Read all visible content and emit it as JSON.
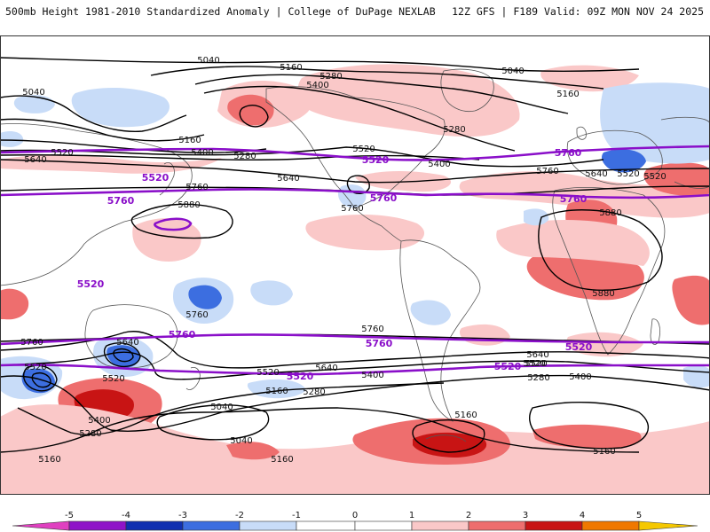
{
  "header": {
    "title": "500mb Height 1981-2010 Standardized Anomaly | College of DuPage NEXLAB",
    "run_info": "12Z GFS | F189 Valid: 09Z MON NOV 24 2025"
  },
  "colors": {
    "contour": "#000000",
    "climatology": "#8a0fc9",
    "coast": "#555555",
    "land": "#ffffff",
    "anom_neg5": "#e040c0",
    "anom_neg4": "#8f14c8",
    "anom_neg3": "#1030b0",
    "anom_neg2": "#3c6ee0",
    "anom_neg1": "#c8dcf8",
    "anom_pos1": "#fac8c8",
    "anom_pos2": "#ee6e6e",
    "anom_pos3": "#c81414",
    "anom_pos4": "#f07800",
    "anom_pos5": "#f5c800"
  },
  "height_labels": [
    {
      "text": "5040"
    },
    {
      "text": "5160"
    },
    {
      "text": "5280"
    },
    {
      "text": "5040"
    },
    {
      "text": "5400"
    },
    {
      "text": "5040"
    },
    {
      "text": "5160"
    },
    {
      "text": "5280"
    },
    {
      "text": "5160"
    },
    {
      "text": "5520"
    },
    {
      "text": "5400"
    },
    {
      "text": "5280"
    },
    {
      "text": "5640"
    },
    {
      "text": "5520"
    },
    {
      "text": "5400"
    },
    {
      "text": "5520"
    },
    {
      "text": "5640"
    },
    {
      "text": "5760"
    },
    {
      "text": "5640"
    },
    {
      "text": "5520"
    },
    {
      "text": "5760"
    },
    {
      "text": "5880"
    },
    {
      "text": "5880"
    },
    {
      "text": "5880"
    },
    {
      "text": "5760"
    },
    {
      "text": "5760"
    },
    {
      "text": "5760"
    },
    {
      "text": "5640"
    },
    {
      "text": "5520"
    },
    {
      "text": "5520"
    },
    {
      "text": "5640"
    },
    {
      "text": "5520"
    },
    {
      "text": "5400"
    },
    {
      "text": "5160"
    },
    {
      "text": "5280"
    },
    {
      "text": "5400"
    },
    {
      "text": "5280"
    },
    {
      "text": "5040"
    },
    {
      "text": "5040"
    },
    {
      "text": "5160"
    },
    {
      "text": "5160"
    },
    {
      "text": "5160"
    },
    {
      "text": "5160"
    },
    {
      "text": "5400"
    },
    {
      "text": "5520"
    },
    {
      "text": "5640"
    },
    {
      "text": "5280"
    },
    {
      "text": "5520"
    },
    {
      "text": "5760"
    }
  ],
  "climatology_labels": [
    {
      "text": "5520"
    },
    {
      "text": "5520"
    },
    {
      "text": "5520"
    },
    {
      "text": "5760"
    },
    {
      "text": "5760"
    },
    {
      "text": "5760"
    },
    {
      "text": "5760"
    },
    {
      "text": "5760"
    },
    {
      "text": "5760"
    },
    {
      "text": "5520"
    },
    {
      "text": "5520"
    },
    {
      "text": "5520"
    }
  ],
  "colorbar": {
    "labels": [
      "-5",
      "-4",
      "-3",
      "-2",
      "-1",
      "0",
      "1",
      "2",
      "3",
      "4",
      "5"
    ]
  }
}
